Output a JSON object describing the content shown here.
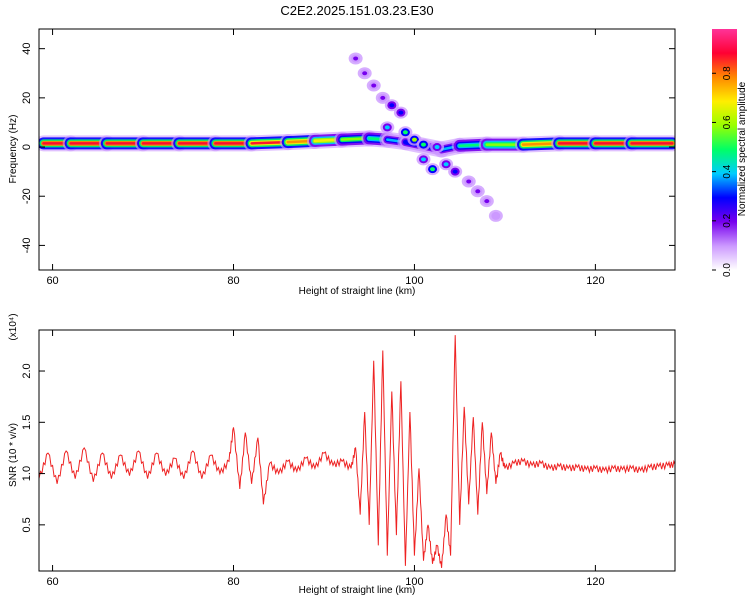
{
  "figure": {
    "title": "C2E2.2025.151.03.23.E30"
  },
  "chart_data": [
    {
      "type": "heatmap",
      "xlabel": "Height of straight line (km)",
      "ylabel": "Frequency (Hz)",
      "xlim": [
        58.5,
        128.8
      ],
      "ylim": [
        -50,
        48
      ],
      "xticks": [
        "60",
        "80",
        "100",
        "120"
      ],
      "yticks": [
        "40",
        "20",
        "0",
        "-20",
        "-40"
      ],
      "colorbar": {
        "label": "Normalized spectral amplitude",
        "range": [
          0,
          0.98
        ],
        "ticks": [
          "0.0",
          "0.2",
          "0.4",
          "0.6",
          "0.8"
        ],
        "colors": [
          "#ffffff",
          "#cc99ff",
          "#7700ee",
          "#0000ff",
          "#00ccff",
          "#00ff66",
          "#99ff00",
          "#ffee00",
          "#ff8800",
          "#ff0033",
          "#ff3399"
        ]
      },
      "band": [
        {
          "x": 59.0,
          "f": 1.5,
          "amp": 0.88
        },
        {
          "x": 62.0,
          "f": 1.5,
          "amp": 0.9
        },
        {
          "x": 66.0,
          "f": 1.5,
          "amp": 0.88
        },
        {
          "x": 70.0,
          "f": 1.5,
          "amp": 0.9
        },
        {
          "x": 74.0,
          "f": 1.5,
          "amp": 0.88
        },
        {
          "x": 78.0,
          "f": 1.5,
          "amp": 0.9
        },
        {
          "x": 82.0,
          "f": 1.5,
          "amp": 0.88
        },
        {
          "x": 86.0,
          "f": 2.0,
          "amp": 0.82
        },
        {
          "x": 89.0,
          "f": 2.5,
          "amp": 0.7
        },
        {
          "x": 92.0,
          "f": 3.0,
          "amp": 0.6
        },
        {
          "x": 95.0,
          "f": 3.5,
          "amp": 0.5
        },
        {
          "x": 97.0,
          "f": 3.0,
          "amp": 0.42
        },
        {
          "x": 99.0,
          "f": 2.0,
          "amp": 0.35
        },
        {
          "x": 103.0,
          "f": -1.0,
          "amp": 0.3
        },
        {
          "x": 105.0,
          "f": 0.5,
          "amp": 0.45
        },
        {
          "x": 108.0,
          "f": 1.0,
          "amp": 0.55
        },
        {
          "x": 112.0,
          "f": 1.0,
          "amp": 0.65
        },
        {
          "x": 116.0,
          "f": 1.5,
          "amp": 0.85
        },
        {
          "x": 120.0,
          "f": 1.5,
          "amp": 0.9
        },
        {
          "x": 124.0,
          "f": 1.5,
          "amp": 0.88
        },
        {
          "x": 128.5,
          "f": 1.5,
          "amp": 0.85
        }
      ],
      "blobs": [
        {
          "x": 93.5,
          "f": 36.0,
          "amp": 0.15
        },
        {
          "x": 94.5,
          "f": 30.0,
          "amp": 0.18
        },
        {
          "x": 95.5,
          "f": 25.0,
          "amp": 0.2
        },
        {
          "x": 96.5,
          "f": 20.0,
          "amp": 0.22
        },
        {
          "x": 97.5,
          "f": 17.0,
          "amp": 0.25
        },
        {
          "x": 98.5,
          "f": 14.0,
          "amp": 0.25
        },
        {
          "x": 97.0,
          "f": 8.0,
          "amp": 0.35
        },
        {
          "x": 99.0,
          "f": 6.0,
          "amp": 0.5
        },
        {
          "x": 100.0,
          "f": 3.0,
          "amp": 0.55
        },
        {
          "x": 101.0,
          "f": 1.0,
          "amp": 0.45
        },
        {
          "x": 102.5,
          "f": 0.0,
          "amp": 0.4
        },
        {
          "x": 101.0,
          "f": -5.0,
          "amp": 0.35
        },
        {
          "x": 102.0,
          "f": -9.0,
          "amp": 0.45
        },
        {
          "x": 103.5,
          "f": -7.0,
          "amp": 0.35
        },
        {
          "x": 104.5,
          "f": -10.0,
          "amp": 0.25
        },
        {
          "x": 106.0,
          "f": -14.0,
          "amp": 0.2
        },
        {
          "x": 107.0,
          "f": -18.0,
          "amp": 0.18
        },
        {
          "x": 108.0,
          "f": -22.0,
          "amp": 0.16
        },
        {
          "x": 109.0,
          "f": -28.0,
          "amp": 0.12
        }
      ]
    },
    {
      "type": "line",
      "xlabel": "Height of straight line (km)",
      "ylabel": "SNR (10 * v/v)",
      "multiplier_label": "(x10⁴)",
      "xlim": [
        58.5,
        128.8
      ],
      "ylim": [
        0.05,
        2.4
      ],
      "xticks": [
        "60",
        "80",
        "100",
        "120"
      ],
      "yticks": [
        "0.5",
        "1.0",
        "1.5",
        "2.0"
      ],
      "series": [
        {
          "color": "#ee2222",
          "x": [
            58.5,
            59.5,
            60.5,
            61.5,
            62.5,
            63.5,
            64.5,
            65.5,
            66.5,
            67.5,
            68.5,
            69.5,
            70.5,
            71.5,
            72.5,
            73.5,
            74.5,
            75.5,
            76.5,
            77.5,
            78.5,
            79.5,
            80.0,
            80.7,
            81.3,
            82.0,
            82.7,
            83.3,
            84.0,
            85.0,
            86.0,
            87.0,
            88.0,
            89.0,
            90.0,
            91.0,
            92.0,
            93.0,
            93.5,
            94.0,
            94.5,
            95.0,
            95.5,
            96.0,
            96.5,
            97.0,
            97.5,
            98.0,
            98.5,
            99.0,
            99.5,
            100.0,
            100.5,
            101.0,
            101.5,
            102.0,
            102.5,
            103.0,
            103.5,
            104.0,
            104.5,
            105.0,
            105.5,
            106.0,
            106.5,
            107.0,
            107.5,
            108.0,
            108.5,
            109.0,
            109.5,
            110.0,
            111.0,
            112.0,
            113.0,
            114.0,
            115.0,
            116.0,
            117.0,
            118.0,
            119.0,
            120.0,
            121.0,
            122.0,
            123.0,
            124.0,
            125.0,
            126.0,
            127.0,
            128.0,
            128.8
          ],
          "y": [
            0.95,
            1.2,
            0.9,
            1.22,
            0.95,
            1.25,
            0.92,
            1.2,
            0.95,
            1.18,
            0.98,
            1.22,
            0.95,
            1.2,
            0.98,
            1.15,
            0.95,
            1.22,
            0.95,
            1.18,
            1.0,
            1.12,
            1.45,
            0.85,
            1.4,
            0.9,
            1.35,
            0.7,
            1.1,
            1.0,
            1.12,
            1.02,
            1.15,
            1.05,
            1.2,
            1.08,
            1.12,
            1.05,
            1.25,
            0.6,
            1.6,
            0.5,
            2.1,
            0.3,
            2.2,
            0.2,
            1.8,
            0.4,
            1.9,
            0.1,
            1.6,
            0.2,
            1.05,
            0.15,
            0.5,
            0.12,
            0.3,
            0.08,
            0.6,
            0.2,
            2.35,
            0.5,
            1.65,
            0.7,
            1.55,
            0.6,
            1.5,
            0.8,
            1.4,
            0.9,
            1.2,
            1.05,
            1.1,
            1.12,
            1.08,
            1.1,
            1.05,
            1.07,
            1.05,
            1.06,
            1.04,
            1.05,
            1.03,
            1.05,
            1.04,
            1.05,
            1.03,
            1.06,
            1.07,
            1.08,
            1.09
          ]
        }
      ]
    }
  ]
}
